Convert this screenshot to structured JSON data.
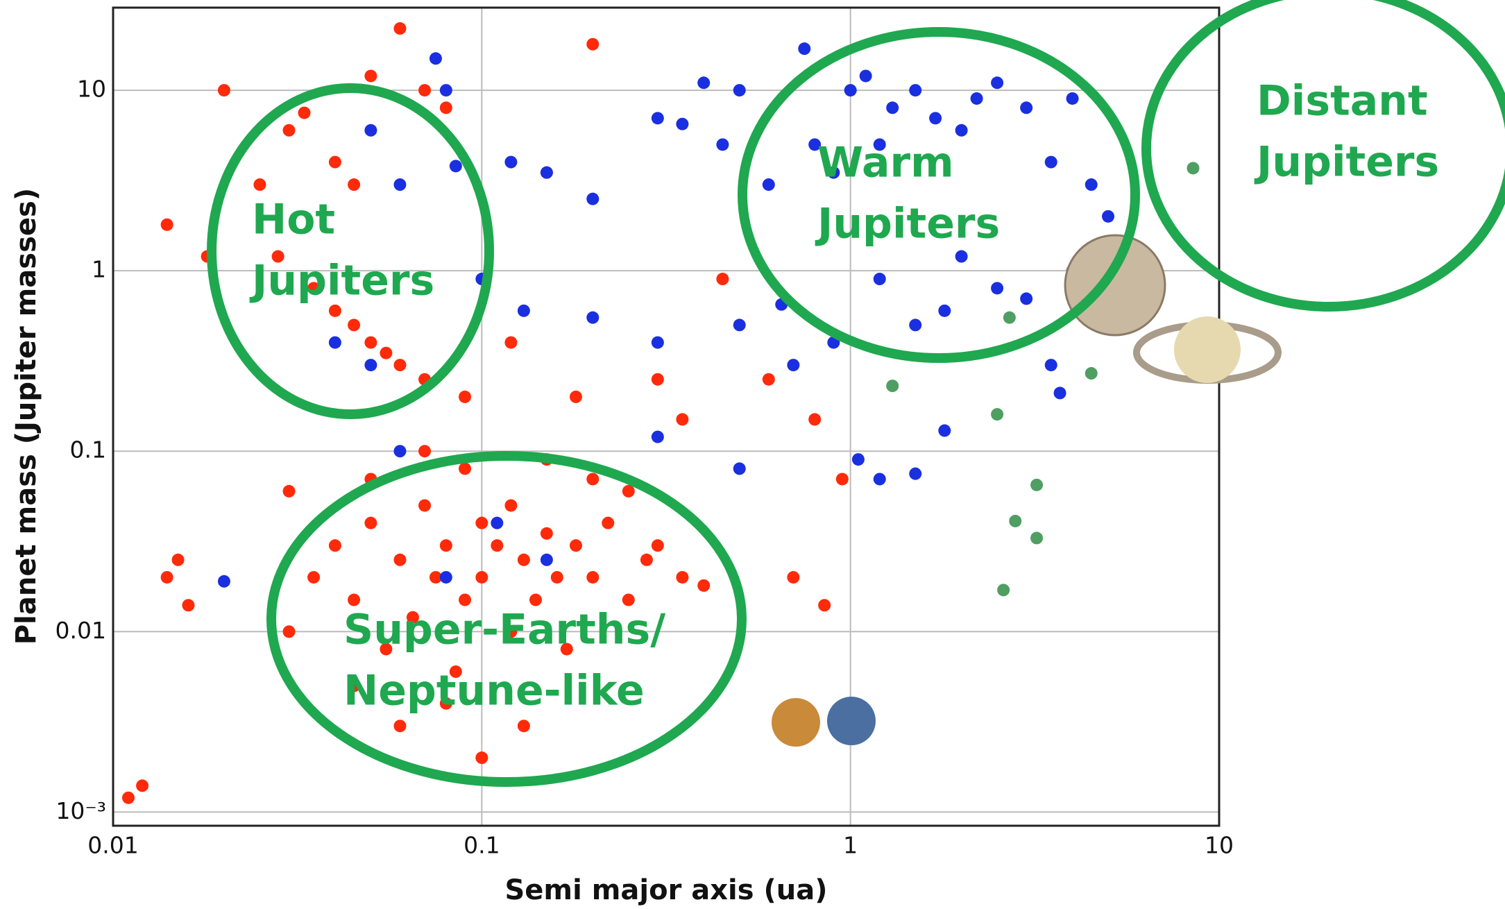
{
  "chart_data": {
    "type": "scatter",
    "xlabel": "Semi major axis (ua)",
    "ylabel": "Planet mass (Jupiter masses)",
    "xscale": "log",
    "yscale": "log",
    "grid": true,
    "xlim": [
      0.01,
      10
    ],
    "ylim": [
      0.00084,
      28.7
    ],
    "xticks": [
      0.01,
      0.1,
      1,
      10
    ],
    "yticks": [
      {
        "value": 0.001,
        "label": "10⁻³"
      },
      0.01,
      0.1,
      1,
      10
    ],
    "series": [
      {
        "color": "#ff2a0a",
        "x": [
          0.02,
          0.03,
          0.033,
          0.04,
          0.045,
          0.05,
          0.06,
          0.07,
          0.08,
          0.025,
          0.028,
          0.035,
          0.04,
          0.045,
          0.05,
          0.055,
          0.06,
          0.07,
          0.09,
          0.014,
          0.018,
          0.2,
          0.15,
          0.12,
          0.18,
          0.3,
          0.35,
          0.45,
          0.6,
          0.8,
          0.7,
          0.85,
          0.95,
          0.03,
          0.015,
          0.014,
          0.016,
          0.011,
          0.012,
          0.03,
          0.035,
          0.04,
          0.045,
          0.05,
          0.055,
          0.06,
          0.065,
          0.07,
          0.075,
          0.08,
          0.085,
          0.09,
          0.1,
          0.1,
          0.11,
          0.12,
          0.12,
          0.13,
          0.14,
          0.15,
          0.16,
          0.17,
          0.18,
          0.2,
          0.22,
          0.25,
          0.28,
          0.3,
          0.35,
          0.4,
          0.045,
          0.06,
          0.08,
          0.1,
          0.13,
          0.09,
          0.07,
          0.15,
          0.2,
          0.25,
          0.05
        ],
        "values": [
          10,
          6,
          7.5,
          4,
          3,
          12,
          22,
          10,
          8,
          3,
          1.2,
          0.8,
          0.6,
          0.5,
          0.4,
          0.35,
          0.3,
          0.25,
          0.2,
          1.8,
          1.2,
          18,
          3.5,
          0.4,
          0.2,
          0.25,
          0.15,
          0.9,
          0.25,
          0.15,
          0.02,
          0.014,
          0.07,
          0.06,
          0.025,
          0.02,
          0.014,
          0.0012,
          0.0014,
          0.01,
          0.02,
          0.03,
          0.015,
          0.04,
          0.008,
          0.025,
          0.012,
          0.05,
          0.02,
          0.03,
          0.006,
          0.015,
          0.04,
          0.02,
          0.03,
          0.01,
          0.05,
          0.025,
          0.015,
          0.035,
          0.02,
          0.008,
          0.03,
          0.02,
          0.04,
          0.015,
          0.025,
          0.03,
          0.02,
          0.018,
          0.005,
          0.003,
          0.004,
          0.002,
          0.003,
          0.08,
          0.1,
          0.09,
          0.07,
          0.06,
          0.07
        ]
      },
      {
        "color": "#1a2fe0",
        "x": [
          0.05,
          0.06,
          0.085,
          0.075,
          0.08,
          0.12,
          0.15,
          0.2,
          0.3,
          0.35,
          0.4,
          0.45,
          0.5,
          0.6,
          0.75,
          0.8,
          0.9,
          1,
          1.1,
          1.2,
          1.3,
          1.5,
          1.7,
          2,
          2.2,
          2.5,
          3,
          3.5,
          4,
          4.5,
          5,
          1.2,
          1.5,
          1.8,
          2,
          2.5,
          3,
          3.5,
          4,
          0.65,
          0.5,
          0.3,
          0.2,
          0.13,
          0.1,
          0.04,
          0.05,
          1.05,
          1.5,
          1.2,
          0.5,
          0.3,
          0.7,
          0.9,
          1.8,
          0.02,
          0.06,
          0.08,
          0.11,
          0.15,
          3.7
        ],
        "values": [
          6,
          3,
          3.8,
          15,
          10,
          4,
          3.5,
          2.5,
          7,
          6.5,
          11,
          5,
          10,
          3,
          17,
          5,
          3.5,
          10,
          12,
          5,
          8,
          10,
          7,
          6,
          9,
          11,
          8,
          4,
          9,
          3,
          2,
          0.9,
          0.5,
          0.6,
          1.2,
          0.8,
          0.7,
          0.3,
          1,
          0.65,
          0.5,
          0.4,
          0.55,
          0.6,
          0.9,
          0.4,
          0.3,
          0.09,
          0.075,
          0.07,
          0.08,
          0.12,
          0.3,
          0.4,
          0.13,
          0.019,
          0.1,
          0.02,
          0.04,
          0.025,
          0.21
        ]
      },
      {
        "color": "#4f9e62",
        "x": [
          1.3,
          2.5,
          8.5,
          3.2,
          2.8,
          3.2,
          2.6,
          4.5,
          2.7
        ],
        "values": [
          0.23,
          0.16,
          3.7,
          0.065,
          0.041,
          0.033,
          0.017,
          0.27,
          0.55
        ]
      }
    ],
    "annotations": [
      [
        "Hot",
        "Jupiters"
      ],
      [
        "Warm",
        "Jupiters"
      ],
      [
        "Distant",
        "Jupiters"
      ],
      [
        "Super-Earths/",
        "Neptune-like"
      ]
    ]
  }
}
